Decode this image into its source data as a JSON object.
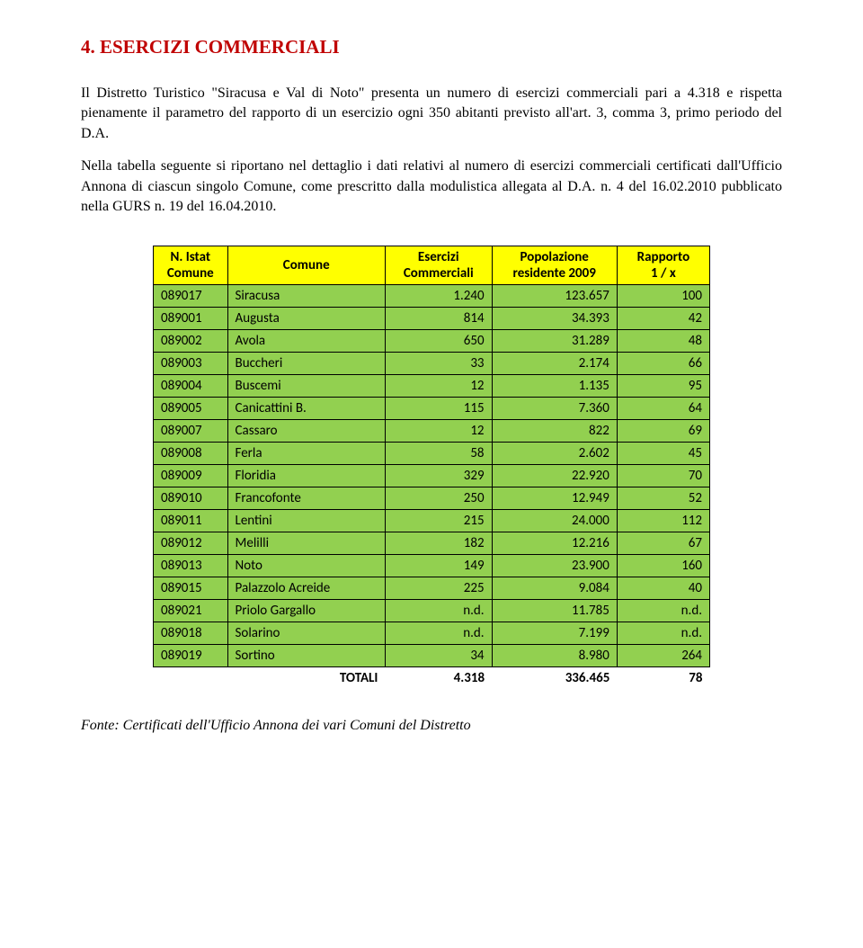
{
  "title": "4.  ESERCIZI  COMMERCIALI",
  "para1": "Il Distretto Turistico \"Siracusa e Val di Noto\" presenta un numero di esercizi commerciali pari a 4.318 e rispetta pienamente il parametro del rapporto di un esercizio ogni 350 abitanti previsto all'art. 3, comma 3, primo periodo del D.A.",
  "para2": "Nella tabella seguente si riportano nel dettaglio i dati relativi al numero di esercizi commerciali certificati dall'Ufficio Annona di ciascun singolo Comune, come prescritto dalla modulistica allegata al D.A. n. 4 del 16.02.2010 pubblicato nella GURS n. 19 del 16.04.2010.",
  "headers": {
    "c0a": "N. Istat",
    "c0b": "Comune",
    "c1": "Comune",
    "c2a": "Esercizi",
    "c2b": "Commerciali",
    "c3a": "Popolazione",
    "c3b": "residente 2009",
    "c4a": "Rapporto",
    "c4b": "1 / x"
  },
  "rows": [
    {
      "istat": "089017",
      "comune": "Siracusa",
      "es": "1.240",
      "pop": "123.657",
      "rap": "100"
    },
    {
      "istat": "089001",
      "comune": "Augusta",
      "es": "814",
      "pop": "34.393",
      "rap": "42"
    },
    {
      "istat": "089002",
      "comune": "Avola",
      "es": "650",
      "pop": "31.289",
      "rap": "48"
    },
    {
      "istat": "089003",
      "comune": "Buccheri",
      "es": "33",
      "pop": "2.174",
      "rap": "66"
    },
    {
      "istat": "089004",
      "comune": "Buscemi",
      "es": "12",
      "pop": "1.135",
      "rap": "95"
    },
    {
      "istat": "089005",
      "comune": "Canicattini B.",
      "es": "115",
      "pop": "7.360",
      "rap": "64"
    },
    {
      "istat": "089007",
      "comune": "Cassaro",
      "es": "12",
      "pop": "822",
      "rap": "69"
    },
    {
      "istat": "089008",
      "comune": "Ferla",
      "es": "58",
      "pop": "2.602",
      "rap": "45"
    },
    {
      "istat": "089009",
      "comune": "Floridia",
      "es": "329",
      "pop": "22.920",
      "rap": "70"
    },
    {
      "istat": "089010",
      "comune": "Francofonte",
      "es": "250",
      "pop": "12.949",
      "rap": "52"
    },
    {
      "istat": "089011",
      "comune": "Lentini",
      "es": "215",
      "pop": "24.000",
      "rap": "112"
    },
    {
      "istat": "089012",
      "comune": "Melilli",
      "es": "182",
      "pop": "12.216",
      "rap": "67"
    },
    {
      "istat": "089013",
      "comune": "Noto",
      "es": "149",
      "pop": "23.900",
      "rap": "160"
    },
    {
      "istat": "089015",
      "comune": "Palazzolo Acreide",
      "es": "225",
      "pop": "9.084",
      "rap": "40"
    },
    {
      "istat": "089021",
      "comune": "Priolo Gargallo",
      "es": "n.d.",
      "pop": "11.785",
      "rap": "n.d."
    },
    {
      "istat": "089018",
      "comune": "Solarino",
      "es": "n.d.",
      "pop": "7.199",
      "rap": "n.d."
    },
    {
      "istat": "089019",
      "comune": "Sortino",
      "es": "34",
      "pop": "8.980",
      "rap": "264"
    }
  ],
  "totals": {
    "label": "TOTALI",
    "es": "4.318",
    "pop": "336.465",
    "rap": "78"
  },
  "source": "Fonte: Certificati dell'Ufficio Annona dei vari Comuni del Distretto",
  "col_widths": {
    "c0": "80px",
    "c1": "170px",
    "c2": "115px",
    "c3": "135px",
    "c4": "100px"
  }
}
